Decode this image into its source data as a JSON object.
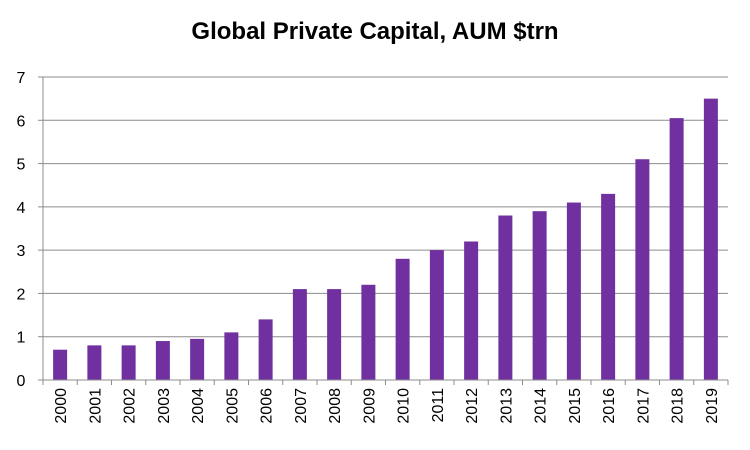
{
  "chart_data": {
    "type": "bar",
    "title": "Global Private Capital, AUM $trn",
    "xlabel": "",
    "ylabel": "",
    "categories": [
      "2000",
      "2001",
      "2002",
      "2003",
      "2004",
      "2005",
      "2006",
      "2007",
      "2008",
      "2009",
      "2010",
      "2011",
      "2012",
      "2013",
      "2014",
      "2015",
      "2016",
      "2017",
      "2018",
      "2019"
    ],
    "values": [
      0.7,
      0.8,
      0.8,
      0.9,
      0.95,
      1.1,
      1.4,
      2.1,
      2.1,
      2.2,
      2.8,
      3.0,
      3.2,
      3.8,
      3.9,
      4.1,
      4.3,
      5.1,
      6.05,
      6.5
    ],
    "ylim": [
      0,
      7
    ],
    "yticks": [
      "0",
      "1",
      "2",
      "3",
      "4",
      "5",
      "6",
      "7"
    ],
    "grid": true,
    "legend": "none",
    "bar_color": "#7030A0"
  }
}
